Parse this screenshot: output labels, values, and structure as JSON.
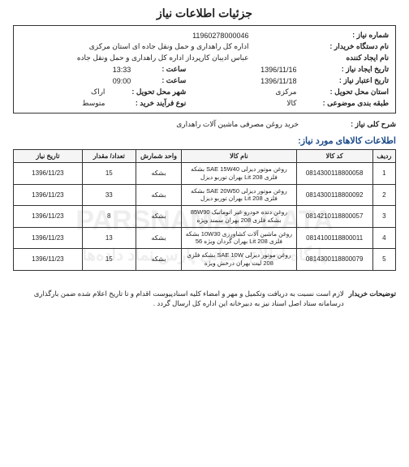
{
  "page_title": "جزئیات اطلاعات نیاز",
  "watermark_line1": "PARSNAMAD DATA",
  "watermark_line2": "پایگاه اطلاع رسانی پارس نماد داده‌ها",
  "info": {
    "request_no_label": "شماره نیاز :",
    "request_no": "11960278000046",
    "buyer_org_label": "نام دستگاه خریدار :",
    "buyer_org": "اداره کل راهداری و حمل ونقل جاده ای استان مرکزی",
    "creator_label": "نام ایجاد کننده",
    "creator": "عباس ادیبان کارپرداز اداره کل راهداری و حمل ونقل جاده",
    "create_date_label": "تاریخ ایجاد نیاز :",
    "create_date": "1396/11/16",
    "create_time_label": "ساعت :",
    "create_time": "13:33",
    "valid_date_label": "تاریخ اعتبار نیاز :",
    "valid_date": "1396/11/18",
    "valid_time_label": "ساعت :",
    "valid_time": "09:00",
    "province_label": "استان محل تحویل :",
    "province": "مرکزی",
    "city_label": "شهر محل تحویل :",
    "city": "اراک",
    "category_label": "طبقه بندی موضوعی :",
    "category": "کالا",
    "proc_type_label": "نوع فرآیند خرید :",
    "proc_type": "متوسط"
  },
  "overall_label": "شرح کلی نیاز :",
  "overall": "خرید روغن مصرفی ماشین آلات راهداری",
  "items_title": "اطلاعات کالاهای مورد نیاز:",
  "headers": {
    "row": "ردیف",
    "code": "کد کالا",
    "name": "نام کالا",
    "unit": "واحد شمارش",
    "qty": "تعداد/ مقدار",
    "date": "تاریخ نیاز"
  },
  "rows": [
    {
      "n": "1",
      "code": "0814300118800058",
      "name": "روغن موتور دیزلی SAE 15W40 بشکه فلزی Lit 208 بهران توربو دیزل",
      "unit": "بشکه",
      "qty": "15",
      "date": "1396/11/23"
    },
    {
      "n": "2",
      "code": "0814300118800092",
      "name": "روغن موتور دیزلی SAE 20W50 بشکه فلزی Lit 208 بهران توربو دیزل",
      "unit": "بشکه",
      "qty": "33",
      "date": "1396/11/23"
    },
    {
      "n": "3",
      "code": "0814210118800057",
      "name": "روغن دنده خودرو غیر اتوماتیک 85W90 بشکه فلزی 208 بهران سمند ویژه",
      "unit": "بشکه",
      "qty": "8",
      "date": "1396/11/23"
    },
    {
      "n": "4",
      "code": "0814100118800011",
      "name": "روغن ماشین آلات کشاورزی 10W30 بشکه فلزی Lit 208 بهران گردان ویژه 56",
      "unit": "بشکه",
      "qty": "13",
      "date": "1396/11/23"
    },
    {
      "n": "5",
      "code": "0814300118800079",
      "name": "روغن موتور دیزلی SAE 10W بشکه فلزی 208 لیت بهران درخش ویژه",
      "unit": "بشکه",
      "qty": "15",
      "date": "1396/11/23"
    }
  ],
  "footer_label": "توضیحات خریدار",
  "footer_text": "لازم است نسبت به دریافت وتکمیل و مهر و امضاء کلیه اسنادپیوست اقدام و تا تاریخ اعلام شده ضمن بارگذاری درسامانه ستاد اصل اسناد نیز به دبیرخانه این اداره کل ارسال گردد ."
}
